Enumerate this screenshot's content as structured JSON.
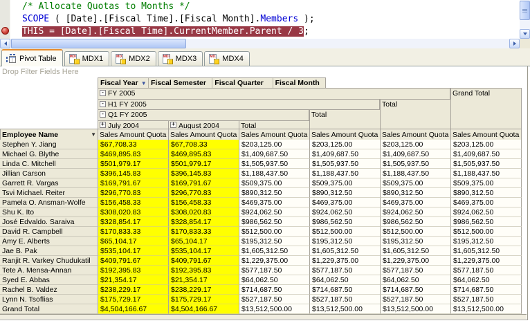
{
  "code_editor": {
    "lines": [
      {
        "breakpoint": false,
        "segments": [
          {
            "style": "comment",
            "text": "/* Allocate Quotas to Months */"
          }
        ]
      },
      {
        "breakpoint": false,
        "segments": [
          {
            "style": "keyword",
            "text": "SCOPE"
          },
          {
            "style": "plain",
            "text": " ( [Date].[Fiscal Time].[Fiscal Month]."
          },
          {
            "style": "keyword",
            "text": "Members"
          },
          {
            "style": "plain",
            "text": " );"
          }
        ]
      },
      {
        "breakpoint": true,
        "segments": [
          {
            "style": "hl",
            "text": "THIS = [Date].[Fiscal Time].CurrentMember.Parent / 3"
          },
          {
            "style": "plain",
            "text": ";"
          }
        ]
      }
    ]
  },
  "tabs": [
    {
      "label": "Pivot Table",
      "active": true,
      "icon": "pivot-table-icon"
    },
    {
      "label": "MDX1",
      "active": false,
      "icon": "mdx-icon"
    },
    {
      "label": "MDX2",
      "active": false,
      "icon": "mdx-icon"
    },
    {
      "label": "MDX3",
      "active": false,
      "icon": "mdx-icon"
    },
    {
      "label": "MDX4",
      "active": false,
      "icon": "mdx-icon"
    }
  ],
  "pivot": {
    "drop_filter_text": "Drop Filter Fields Here",
    "column_fields": [
      "Fiscal Year",
      "Fiscal Semester",
      "Fiscal Quarter",
      "Fiscal Month"
    ],
    "row_field": "Employee Name",
    "measure_label": "Sales Amount Quota",
    "groups": {
      "fiscal_year": "FY 2005",
      "fiscal_semester": "H1 FY 2005",
      "fiscal_quarter": "Q1 FY 2005",
      "months": [
        "July 2004",
        "August 2004"
      ],
      "total_label": "Total",
      "grand_total_label": "Grand Total"
    },
    "rows": [
      {
        "name": "Stephen Y. Jiang",
        "values": [
          "$67,708.33",
          "$67,708.33",
          "$203,125.00",
          "$203,125.00",
          "$203,125.00",
          "$203,125.00"
        ]
      },
      {
        "name": "Michael G. Blythe",
        "values": [
          "$469,895.83",
          "$469,895.83",
          "$1,409,687.50",
          "$1,409,687.50",
          "$1,409,687.50",
          "$1,409,687.50"
        ]
      },
      {
        "name": "Linda C. Mitchell",
        "values": [
          "$501,979.17",
          "$501,979.17",
          "$1,505,937.50",
          "$1,505,937.50",
          "$1,505,937.50",
          "$1,505,937.50"
        ]
      },
      {
        "name": "Jillian Carson",
        "values": [
          "$396,145.83",
          "$396,145.83",
          "$1,188,437.50",
          "$1,188,437.50",
          "$1,188,437.50",
          "$1,188,437.50"
        ]
      },
      {
        "name": "Garrett R. Vargas",
        "values": [
          "$169,791.67",
          "$169,791.67",
          "$509,375.00",
          "$509,375.00",
          "$509,375.00",
          "$509,375.00"
        ]
      },
      {
        "name": "Tsvi Michael. Reiter",
        "values": [
          "$296,770.83",
          "$296,770.83",
          "$890,312.50",
          "$890,312.50",
          "$890,312.50",
          "$890,312.50"
        ]
      },
      {
        "name": "Pamela O. Ansman-Wolfe",
        "values": [
          "$156,458.33",
          "$156,458.33",
          "$469,375.00",
          "$469,375.00",
          "$469,375.00",
          "$469,375.00"
        ]
      },
      {
        "name": "Shu K. Ito",
        "values": [
          "$308,020.83",
          "$308,020.83",
          "$924,062.50",
          "$924,062.50",
          "$924,062.50",
          "$924,062.50"
        ]
      },
      {
        "name": "José Edvaldo. Saraiva",
        "values": [
          "$328,854.17",
          "$328,854.17",
          "$986,562.50",
          "$986,562.50",
          "$986,562.50",
          "$986,562.50"
        ]
      },
      {
        "name": "David R. Campbell",
        "values": [
          "$170,833.33",
          "$170,833.33",
          "$512,500.00",
          "$512,500.00",
          "$512,500.00",
          "$512,500.00"
        ]
      },
      {
        "name": "Amy E. Alberts",
        "values": [
          "$65,104.17",
          "$65,104.17",
          "$195,312.50",
          "$195,312.50",
          "$195,312.50",
          "$195,312.50"
        ]
      },
      {
        "name": "Jae B. Pak",
        "values": [
          "$535,104.17",
          "$535,104.17",
          "$1,605,312.50",
          "$1,605,312.50",
          "$1,605,312.50",
          "$1,605,312.50"
        ]
      },
      {
        "name": "Ranjit R. Varkey Chudukatil",
        "values": [
          "$409,791.67",
          "$409,791.67",
          "$1,229,375.00",
          "$1,229,375.00",
          "$1,229,375.00",
          "$1,229,375.00"
        ]
      },
      {
        "name": "Tete A. Mensa-Annan",
        "values": [
          "$192,395.83",
          "$192,395.83",
          "$577,187.50",
          "$577,187.50",
          "$577,187.50",
          "$577,187.50"
        ]
      },
      {
        "name": "Syed E. Abbas",
        "values": [
          "$21,354.17",
          "$21,354.17",
          "$64,062.50",
          "$64,062.50",
          "$64,062.50",
          "$64,062.50"
        ]
      },
      {
        "name": "Rachel B. Valdez",
        "values": [
          "$238,229.17",
          "$238,229.17",
          "$714,687.50",
          "$714,687.50",
          "$714,687.50",
          "$714,687.50"
        ]
      },
      {
        "name": "Lynn N. Tsoflias",
        "values": [
          "$175,729.17",
          "$175,729.17",
          "$527,187.50",
          "$527,187.50",
          "$527,187.50",
          "$527,187.50"
        ]
      },
      {
        "name": "Grand Total",
        "values": [
          "$4,504,166.67",
          "$4,504,166.67",
          "$13,512,500.00",
          "$13,512,500.00",
          "$13,512,500.00",
          "$13,512,500.00"
        ]
      }
    ]
  },
  "colors": {
    "highlight_line_bg": "#983845",
    "comment_green": "#007D00",
    "keyword_blue": "#0000D4",
    "active_tab_accent": "#E68B2C",
    "month_cell_bg": "#FFFF00",
    "header_bg": "#ECE9D8"
  }
}
